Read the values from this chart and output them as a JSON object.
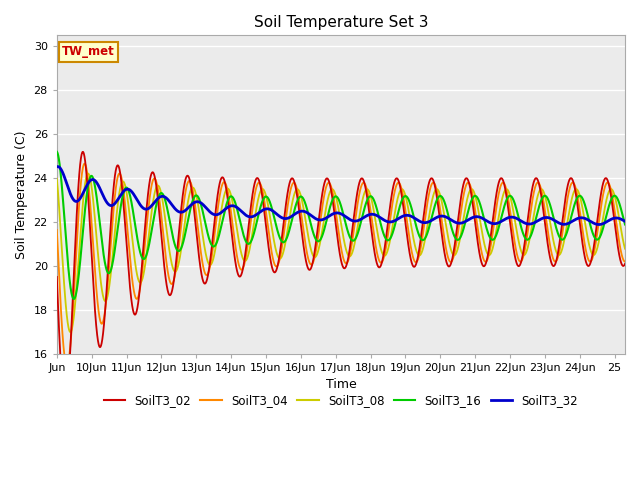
{
  "title": "Soil Temperature Set 3",
  "xlabel": "Time",
  "ylabel": "Soil Temperature (C)",
  "xlim_days": [
    9.0,
    25.3
  ],
  "ylim": [
    16,
    30.5
  ],
  "yticks": [
    16,
    18,
    20,
    22,
    24,
    26,
    28,
    30
  ],
  "xtick_positions": [
    9,
    10,
    11,
    12,
    13,
    14,
    15,
    16,
    17,
    18,
    19,
    20,
    21,
    22,
    23,
    24,
    25
  ],
  "xtick_labels": [
    "Jun",
    "10Jun",
    "11Jun",
    "12Jun",
    "13Jun",
    "14Jun",
    "15Jun",
    "16Jun",
    "17Jun",
    "18Jun",
    "19Jun",
    "20Jun",
    "21Jun",
    "22Jun",
    "23Jun",
    "24Jun",
    "25"
  ],
  "series_colors": {
    "SoilT3_02": "#cc0000",
    "SoilT3_04": "#ff8800",
    "SoilT3_08": "#cccc00",
    "SoilT3_16": "#00cc00",
    "SoilT3_32": "#0000cc"
  },
  "plot_bg_color": "#ebebeb",
  "grid_color": "#ffffff",
  "annotation_text": "TW_met",
  "annotation_color": "#cc0000",
  "annotation_bg": "#ffffcc",
  "annotation_border": "#cc8800"
}
